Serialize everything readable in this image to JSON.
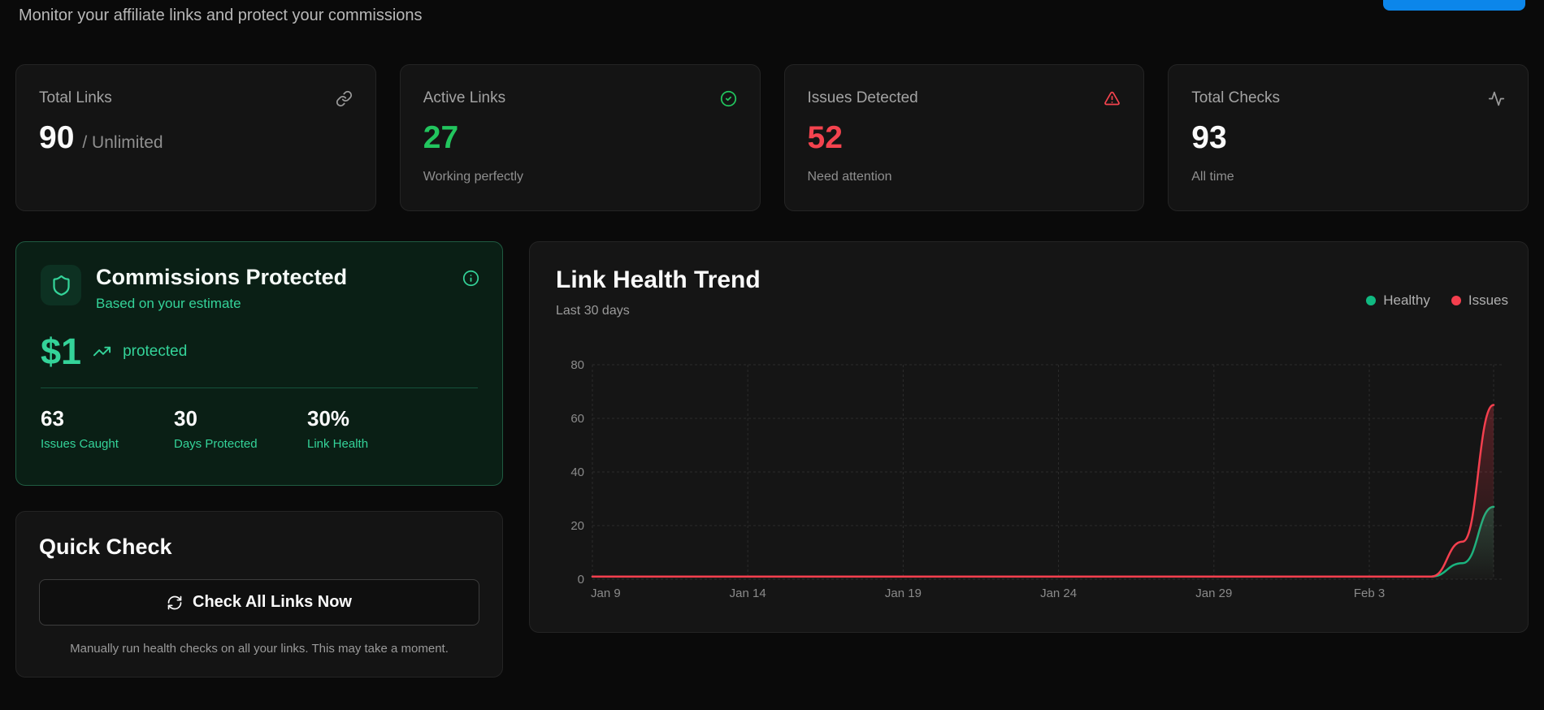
{
  "header": {
    "subtitle": "Monitor your affiliate links and protect your commissions"
  },
  "stat_cards": [
    {
      "label": "Total Links",
      "value": "90",
      "suffix": "/ Unlimited",
      "sub": "",
      "icon": "link-icon"
    },
    {
      "label": "Active Links",
      "value": "27",
      "suffix": "",
      "sub": "Working perfectly",
      "icon": "check-circle-icon"
    },
    {
      "label": "Issues Detected",
      "value": "52",
      "suffix": "",
      "sub": "Need attention",
      "icon": "alert-triangle-icon"
    },
    {
      "label": "Total Checks",
      "value": "93",
      "suffix": "",
      "sub": "All time",
      "icon": "activity-icon"
    }
  ],
  "commissions": {
    "title": "Commissions Protected",
    "subtitle": "Based on your estimate",
    "amount": "$1",
    "amount_caption": "protected",
    "stats": [
      {
        "value": "63",
        "label": "Issues Caught"
      },
      {
        "value": "30",
        "label": "Days Protected"
      },
      {
        "value": "30%",
        "label": "Link Health"
      }
    ]
  },
  "quick_check": {
    "title": "Quick Check",
    "button_label": "Check All Links Now",
    "caption": "Manually run health checks on all your links. This may take a moment."
  },
  "chart_card": {
    "title": "Link Health Trend",
    "subtitle": "Last 30 days",
    "legend": [
      {
        "label": "Healthy",
        "color": "#10b981"
      },
      {
        "label": "Issues",
        "color": "#f43f4e"
      }
    ]
  },
  "chart_data": {
    "type": "line",
    "x": [
      "Jan 9",
      "Jan 10",
      "Jan 11",
      "Jan 12",
      "Jan 13",
      "Jan 14",
      "Jan 15",
      "Jan 16",
      "Jan 17",
      "Jan 18",
      "Jan 19",
      "Jan 20",
      "Jan 21",
      "Jan 22",
      "Jan 23",
      "Jan 24",
      "Jan 25",
      "Jan 26",
      "Jan 27",
      "Jan 28",
      "Jan 29",
      "Jan 30",
      "Jan 31",
      "Feb 1",
      "Feb 2",
      "Feb 3",
      "Feb 4",
      "Feb 5",
      "Feb 6",
      "Feb 7"
    ],
    "x_tick_labels": [
      "Jan 9",
      "Jan 14",
      "Jan 19",
      "Jan 24",
      "Jan 29",
      "Feb 3"
    ],
    "series": [
      {
        "name": "Healthy",
        "color": "#10b981",
        "values": [
          1,
          1,
          1,
          1,
          1,
          1,
          1,
          1,
          1,
          1,
          1,
          1,
          1,
          1,
          1,
          1,
          1,
          1,
          1,
          1,
          1,
          1,
          1,
          1,
          1,
          1,
          1,
          1,
          6,
          27
        ]
      },
      {
        "name": "Issues",
        "color": "#f43f4e",
        "values": [
          1,
          1,
          1,
          1,
          1,
          1,
          1,
          1,
          1,
          1,
          1,
          1,
          1,
          1,
          1,
          1,
          1,
          1,
          1,
          1,
          1,
          1,
          1,
          1,
          1,
          1,
          1,
          1,
          14,
          65
        ]
      }
    ],
    "ylim": [
      0,
      80
    ],
    "yticks": [
      0,
      20,
      40,
      60,
      80
    ],
    "grid": "dashed",
    "legend_position": "top-right"
  },
  "colors": {
    "background": "#0a0a0a",
    "card_background": "#141414",
    "green_card_background": "#0a1f15",
    "accent_green": "#22c55e",
    "soft_green": "#34d399",
    "line_green": "#10b981",
    "accent_red": "#f4434e",
    "line_red": "#f43f4e",
    "accent_blue": "#0c86ea"
  }
}
